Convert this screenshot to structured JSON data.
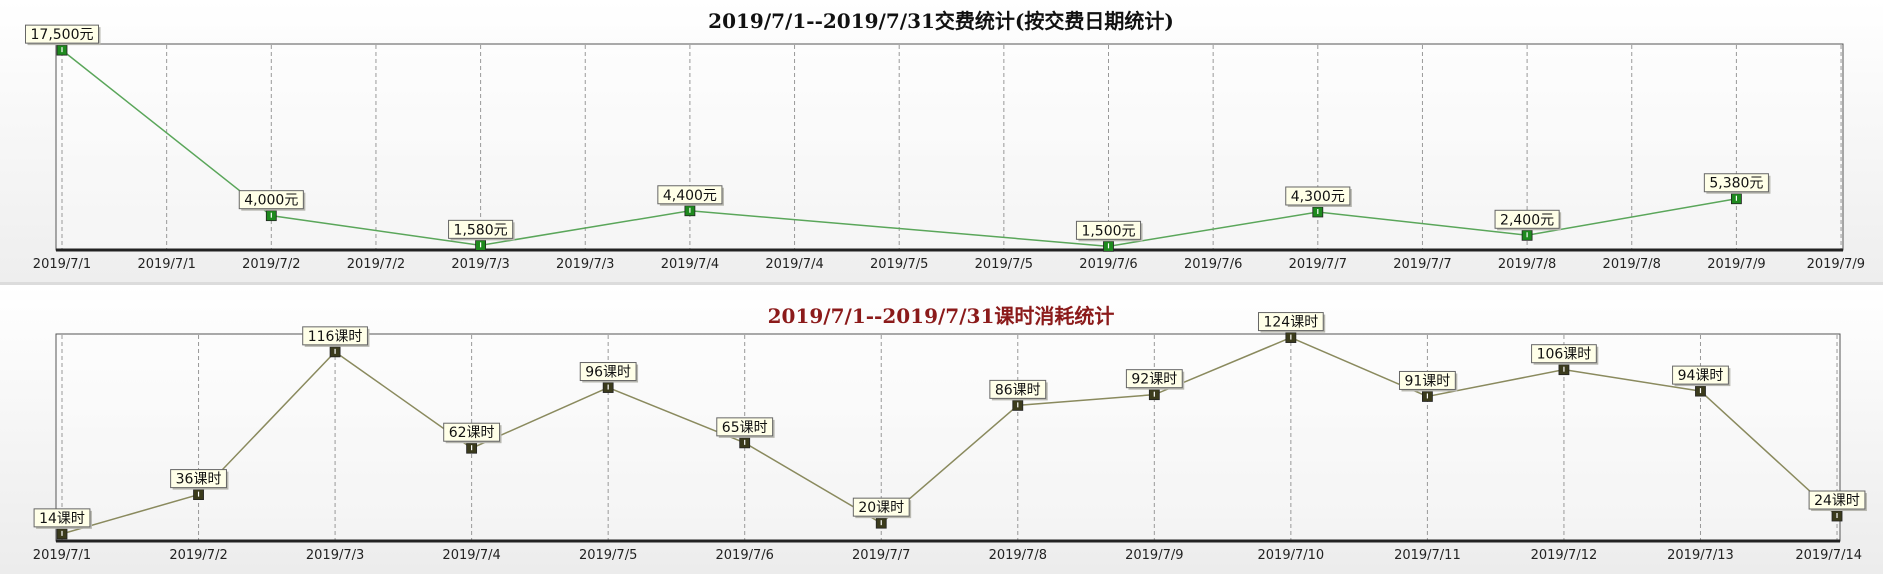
{
  "chart_data": [
    {
      "type": "line",
      "title": "2019/7/1--2019/7/31交费统计(按交费日期统计)",
      "title_color": "#111111",
      "line_color": "#5aa65a",
      "marker_color": "#1e8a1e",
      "grid": true,
      "x_tick_labels": [
        "2019/7/1",
        "2019/7/1",
        "2019/7/2",
        "2019/7/2",
        "2019/7/3",
        "2019/7/3",
        "2019/7/4",
        "2019/7/4",
        "2019/7/5",
        "2019/7/5",
        "2019/7/6",
        "2019/7/6",
        "2019/7/7",
        "2019/7/7",
        "2019/7/8",
        "2019/7/8",
        "2019/7/9",
        "2019/7/9"
      ],
      "x": [
        "2019/7/1",
        "2019/7/2",
        "2019/7/3",
        "2019/7/4",
        "2019/7/6",
        "2019/7/7",
        "2019/7/8",
        "2019/7/9"
      ],
      "values": [
        17500,
        4000,
        1580,
        4400,
        1500,
        4300,
        2400,
        5380
      ],
      "data_labels": [
        "17,500元",
        "4,000元",
        "1,580元",
        "4,400元",
        "1,500元",
        "4,300元",
        "2,400元",
        "5,380元"
      ],
      "ylim": [
        1200,
        18000
      ]
    },
    {
      "type": "line",
      "title": "2019/7/1--2019/7/31课时消耗统计",
      "title_color": "#8b1a1a",
      "line_color": "#8a8a5e",
      "marker_color": "#3b3b1c",
      "grid": true,
      "x_tick_labels": [
        "2019/7/1",
        "2019/7/2",
        "2019/7/3",
        "2019/7/4",
        "2019/7/5",
        "2019/7/6",
        "2019/7/7",
        "2019/7/8",
        "2019/7/9",
        "2019/7/10",
        "2019/7/11",
        "2019/7/12",
        "2019/7/13",
        "2019/7/14"
      ],
      "x": [
        "2019/7/1",
        "2019/7/2",
        "2019/7/3",
        "2019/7/4",
        "2019/7/5",
        "2019/7/6",
        "2019/7/7",
        "2019/7/8",
        "2019/7/9",
        "2019/7/10",
        "2019/7/11",
        "2019/7/12",
        "2019/7/13",
        "2019/7/14"
      ],
      "values": [
        14,
        36,
        116,
        62,
        96,
        65,
        20,
        86,
        92,
        124,
        91,
        106,
        94,
        24
      ],
      "data_labels": [
        "14课时",
        "36课时",
        "116课时",
        "62课时",
        "96课时",
        "65课时",
        "20课时",
        "86课时",
        "92课时",
        "124课时",
        "91课时",
        "106课时",
        "94课时",
        "24课时"
      ],
      "ylim": [
        10,
        126
      ]
    }
  ]
}
